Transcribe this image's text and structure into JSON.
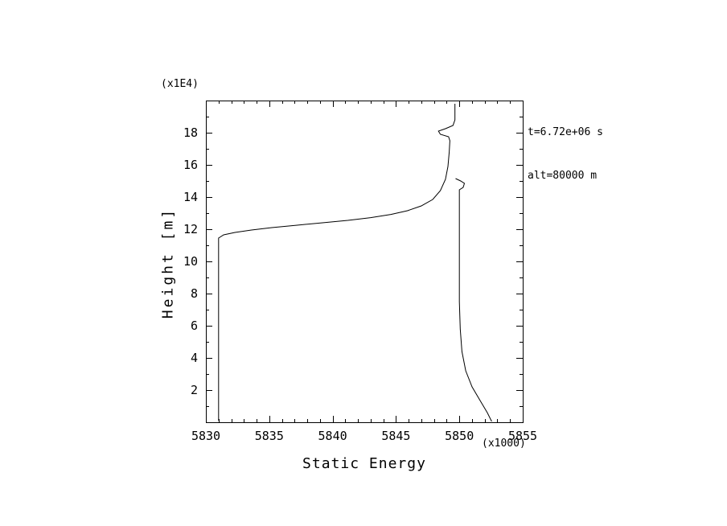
{
  "figure": {
    "background": "#ffffff",
    "line_color": "#000000"
  },
  "chart_data": {
    "type": "line",
    "title": "",
    "xlabel": "Static Energy",
    "ylabel": "Height [m]",
    "x_scale_note": "(x1000)",
    "y_scale_note": "(x1E4)",
    "xlim": [
      5830,
      5855
    ],
    "ylim": [
      0,
      20
    ],
    "x_ticks": [
      5830,
      5835,
      5840,
      5845,
      5850,
      5855
    ],
    "y_ticks": [
      2,
      4,
      6,
      8,
      10,
      12,
      14,
      16,
      18
    ],
    "x_minor_step": 1,
    "y_minor_step": 1,
    "grid": false,
    "legend": "none",
    "annotations": [
      "t=6.72e+06 s",
      "alt=80000 m"
    ],
    "series": [
      {
        "name": "static-energy-profile-left",
        "points": [
          [
            5831.0,
            0.1
          ],
          [
            5831.0,
            11.45
          ],
          [
            5831.4,
            11.65
          ],
          [
            5832.3,
            11.8
          ],
          [
            5833.6,
            11.95
          ],
          [
            5835.2,
            12.1
          ],
          [
            5837.2,
            12.25
          ],
          [
            5839.2,
            12.4
          ],
          [
            5841.2,
            12.55
          ],
          [
            5843.0,
            12.72
          ],
          [
            5844.6,
            12.92
          ],
          [
            5845.9,
            13.15
          ],
          [
            5847.0,
            13.45
          ],
          [
            5847.9,
            13.85
          ],
          [
            5848.5,
            14.4
          ],
          [
            5848.9,
            15.1
          ],
          [
            5849.1,
            15.9
          ],
          [
            5849.2,
            16.8
          ],
          [
            5849.25,
            17.5
          ],
          [
            5849.15,
            17.75
          ],
          [
            5848.5,
            17.9
          ],
          [
            5848.35,
            18.1
          ],
          [
            5848.9,
            18.25
          ],
          [
            5849.5,
            18.45
          ],
          [
            5849.65,
            18.8
          ],
          [
            5849.65,
            19.8
          ]
        ]
      },
      {
        "name": "static-energy-profile-right",
        "points": [
          [
            5852.55,
            0.05
          ],
          [
            5852.2,
            0.6
          ],
          [
            5851.6,
            1.4
          ],
          [
            5851.0,
            2.2
          ],
          [
            5850.5,
            3.2
          ],
          [
            5850.2,
            4.4
          ],
          [
            5850.07,
            5.8
          ],
          [
            5850.0,
            7.5
          ],
          [
            5850.0,
            14.45
          ],
          [
            5850.3,
            14.6
          ],
          [
            5850.4,
            14.85
          ],
          [
            5850.1,
            15.0
          ],
          [
            5849.7,
            15.15
          ]
        ]
      }
    ]
  }
}
